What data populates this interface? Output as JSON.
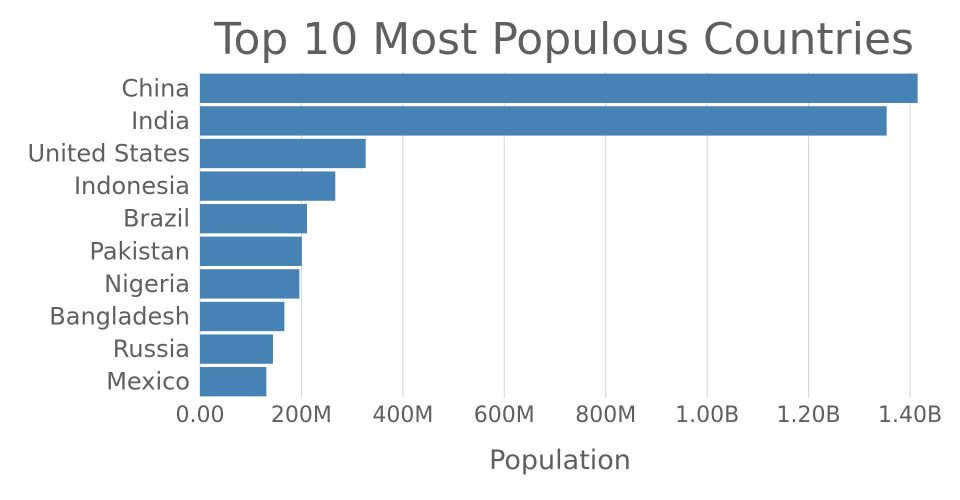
{
  "chart_data": {
    "type": "bar",
    "orientation": "horizontal",
    "title": "Top 10 Most Populous Countries",
    "xlabel": "Population",
    "ylabel": "",
    "categories": [
      "China",
      "India",
      "United States",
      "Indonesia",
      "Brazil",
      "Pakistan",
      "Nigeria",
      "Bangladesh",
      "Russia",
      "Mexico"
    ],
    "values": [
      1415000000,
      1354000000,
      326700000,
      266800000,
      210900000,
      200800000,
      196000000,
      166400000,
      143900000,
      130800000
    ],
    "xlim": [
      0,
      1400000000
    ],
    "xticks": [
      0,
      200000000,
      400000000,
      600000000,
      800000000,
      1000000000,
      1200000000,
      1400000000
    ],
    "xtick_labels": [
      "0.00",
      "200M",
      "400M",
      "600M",
      "800M",
      "1.00B",
      "1.20B",
      "1.40B"
    ],
    "grid": true,
    "legend": "none",
    "bar_color": "#4682b4"
  }
}
